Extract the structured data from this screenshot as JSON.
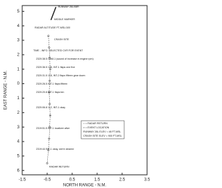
{
  "chart_data": {
    "type": "line",
    "xlabel": "NORTH RANGE - N.M.",
    "ylabel": "EAST RANGE - N.M.",
    "xlim": [
      -1.5,
      3.5
    ],
    "xticks": [
      -1.5,
      -0.5,
      0.5,
      1.5,
      2.5,
      3.5
    ],
    "ylim": [
      -6.3,
      5.4
    ],
    "yticks": [
      5,
      4,
      3,
      2,
      1,
      0,
      {
        "value": -1,
        "label": "1"
      },
      {
        "value": -2,
        "label": "2"
      },
      {
        "value": -3,
        "label": "3"
      },
      {
        "value": -4,
        "label": "4"
      },
      {
        "value": -5,
        "label": "5"
      },
      {
        "value": -6,
        "label": "6"
      }
    ],
    "series": [
      {
        "name": "RUNWAY 26L/08R",
        "color": "#222222",
        "x": [
          -0.35,
          -0.15
        ],
        "values": [
          4.4,
          5.3
        ]
      },
      {
        "name": "RADAR RETURN",
        "color": "#333333",
        "x": [
          -0.45,
          -0.42,
          -0.4,
          -0.38,
          -0.4,
          -0.42,
          -0.4,
          -0.38,
          -0.4,
          -0.42,
          -0.45,
          -0.5
        ],
        "values": [
          3.3,
          2.5,
          1.8,
          1.0,
          0.2,
          -0.6,
          -1.4,
          -2.2,
          -3.0,
          -3.8,
          -4.6,
          -5.5
        ]
      }
    ],
    "annotations": [
      "MIDDLE MARKER",
      "RADAR ALTITUDE FT-MSL/100",
      "CRASH SITE",
      "TIME - INFO. SELECTED CVR FOR EVENT",
      "2320:38.5 CAM-1 (sound of increase in engine rpm)",
      "2320:36.5 126, INT-1 flaps one five",
      "2320:31.5 118, INT-2 flaps fifteen gear down",
      "2320:26.5 INT-1 flaps fifteen",
      "2320:20.8 INT-1 flaps ten",
      "2320:06.8 112, INT-1 okay",
      "2319:51.5 INT-1 localizer alive",
      "2319:44 INT-1 okay, we're cleared",
      "○ = RADAR RETURN",
      "× = EVENT LOCATION",
      "RUNWAY 26L ELEV = 48 FT-MSL",
      "CRASH SITE ELEV = 900 FT-MSL"
    ],
    "grid": false
  }
}
